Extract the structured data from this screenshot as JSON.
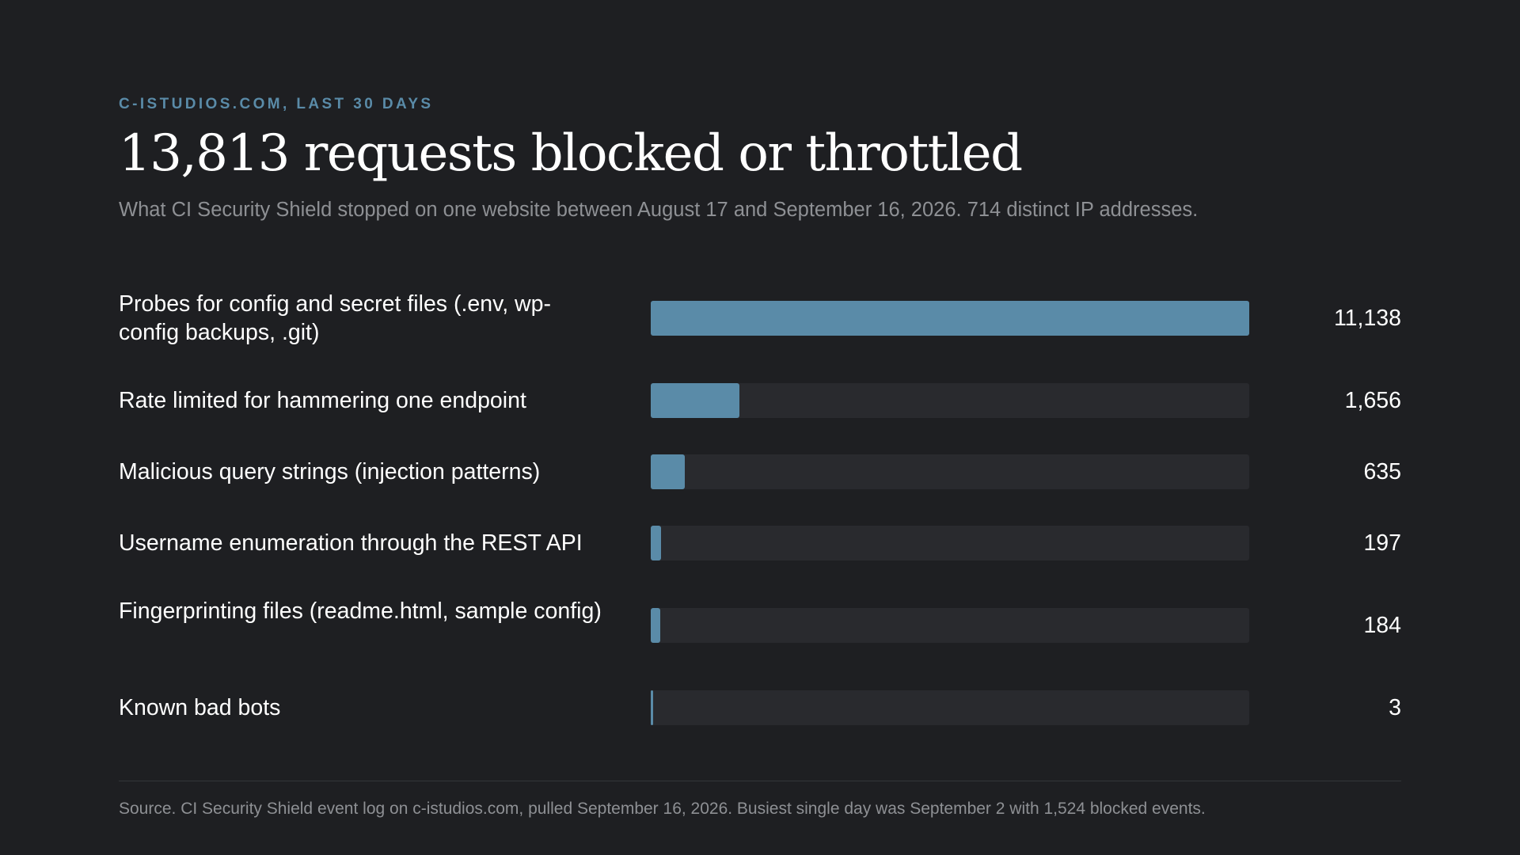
{
  "header": {
    "kicker": "C-ISTUDIOS.COM, LAST 30 DAYS",
    "title": "13,813 requests blocked or throttled",
    "subtitle": "What CI Security Shield stopped on one website between August 17 and September 16, 2026. 714 distinct IP addresses."
  },
  "chart_data": {
    "type": "bar",
    "orientation": "horizontal",
    "categories": [
      "Probes for config and secret files (.env, wp-config backups, .git)",
      "Rate limited for hammering one endpoint",
      "Malicious query strings (injection patterns)",
      "Username enumeration through the REST API",
      "Fingerprinting files (readme.html, sample config)",
      "Known bad bots"
    ],
    "values": [
      11138,
      1656,
      635,
      197,
      184,
      3
    ],
    "value_labels": [
      "11,138",
      "1,656",
      "635",
      "197",
      "184",
      "3"
    ],
    "xlim": [
      0,
      11138
    ],
    "grid": false,
    "legend": "none"
  },
  "footer": {
    "source": "Source. CI Security Shield event log on c-istudios.com, pulled September 16, 2026. Busiest single day was September 2 with 1,524 blocked events."
  },
  "colors": {
    "background": "#1e1f22",
    "accent": "#5a8ba8",
    "track": "#292a2e",
    "muted_text": "#8e9094"
  }
}
